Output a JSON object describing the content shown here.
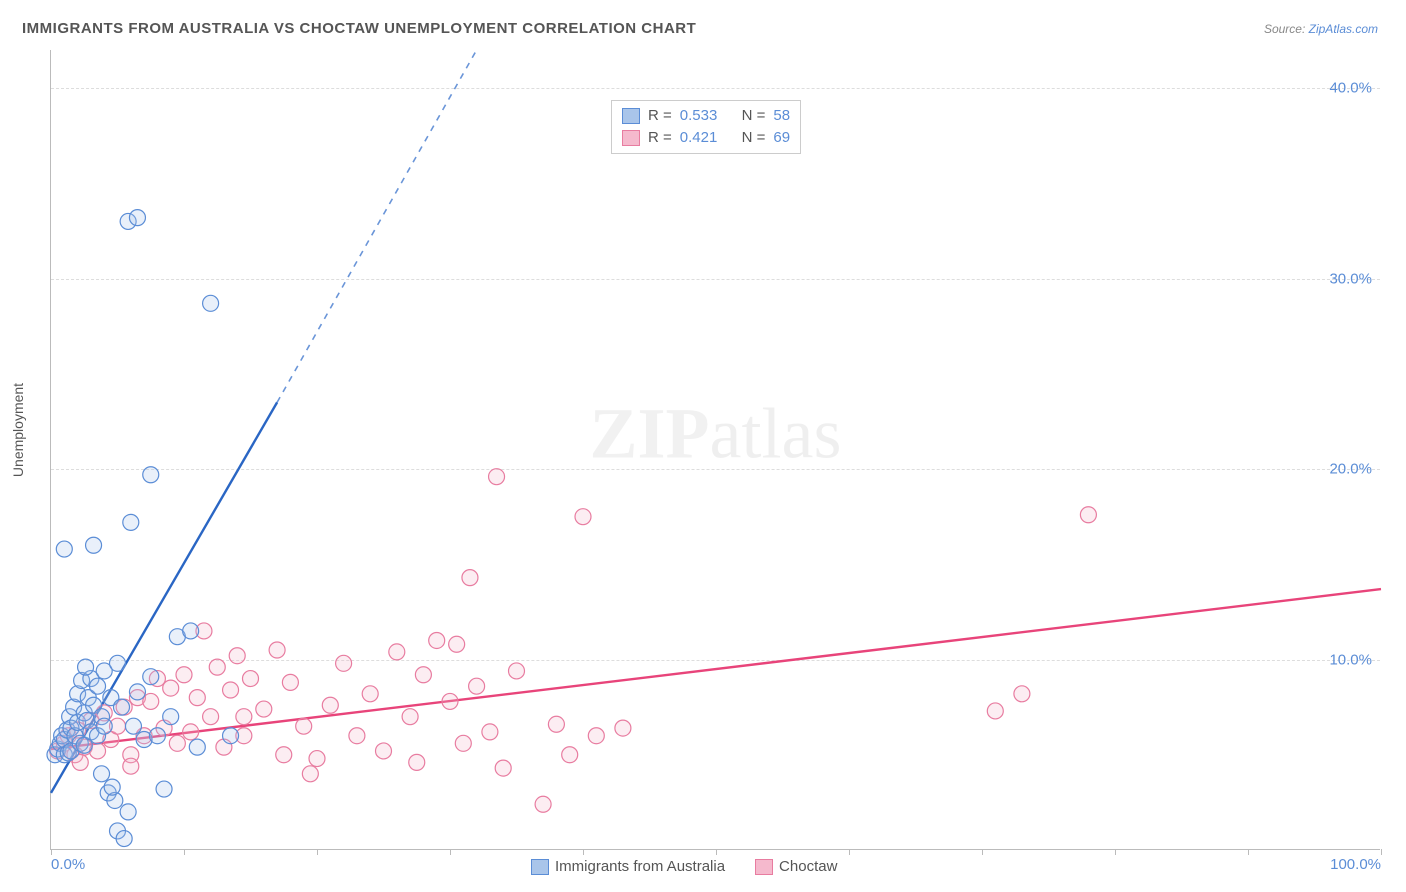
{
  "title": "IMMIGRANTS FROM AUSTRALIA VS CHOCTAW UNEMPLOYMENT CORRELATION CHART",
  "source_prefix": "Source: ",
  "source_name": "ZipAtlas.com",
  "y_axis_label": "Unemployment",
  "watermark_a": "ZIP",
  "watermark_b": "atlas",
  "chart": {
    "type": "scatter",
    "background_color": "#ffffff",
    "grid_color": "#dddddd",
    "axis_color": "#bbbbbb",
    "tick_label_color": "#5b8dd6",
    "axis_label_color": "#555555",
    "title_color": "#555555",
    "title_fontsize": 15,
    "tick_fontsize": 15,
    "axis_label_fontsize": 14,
    "xlim": [
      0,
      100
    ],
    "ylim": [
      0,
      42
    ],
    "y_ticks": [
      10.0,
      20.0,
      30.0,
      40.0
    ],
    "y_tick_labels": [
      "10.0%",
      "20.0%",
      "30.0%",
      "40.0%"
    ],
    "x_ticks": [
      0,
      10,
      20,
      30,
      40,
      50,
      60,
      70,
      80,
      90,
      100
    ],
    "x_visible_labels": {
      "0": "0.0%",
      "100": "100.0%"
    },
    "marker_radius": 8,
    "marker_stroke_width": 1.2,
    "marker_fill_opacity": 0.25,
    "trend_line_width": 2.4
  },
  "series": {
    "blue": {
      "name": "Immigrants from Australia",
      "color_stroke": "#5b8dd6",
      "color_fill": "#a9c5ea",
      "trend_line_color": "#2a66c4",
      "trend_dashed_color": "#6a95d8",
      "R_label": "R = ",
      "R_value": "0.533",
      "N_label": "N = ",
      "N_value": "58",
      "trend_solid": {
        "x1": 0,
        "y1": 3.0,
        "x2": 17,
        "y2": 23.5
      },
      "trend_dashed": {
        "x1": 17,
        "y1": 23.5,
        "x2": 32,
        "y2": 42
      },
      "points": [
        [
          0.3,
          5.0
        ],
        [
          0.5,
          5.3
        ],
        [
          0.7,
          5.6
        ],
        [
          0.8,
          6.0
        ],
        [
          1.0,
          5.0
        ],
        [
          1.0,
          5.8
        ],
        [
          1.2,
          6.3
        ],
        [
          1.3,
          5.1
        ],
        [
          1.4,
          7.0
        ],
        [
          1.5,
          6.4
        ],
        [
          1.5,
          5.2
        ],
        [
          1.7,
          7.5
        ],
        [
          1.8,
          6.0
        ],
        [
          2.0,
          8.2
        ],
        [
          2.0,
          6.7
        ],
        [
          2.2,
          5.6
        ],
        [
          2.3,
          8.9
        ],
        [
          2.5,
          7.2
        ],
        [
          2.5,
          5.5
        ],
        [
          2.7,
          6.8
        ],
        [
          2.8,
          8.0
        ],
        [
          3.0,
          9.0
        ],
        [
          3.0,
          6.2
        ],
        [
          3.2,
          7.6
        ],
        [
          3.5,
          8.6
        ],
        [
          3.5,
          6.0
        ],
        [
          3.8,
          7.0
        ],
        [
          4.0,
          9.4
        ],
        [
          4.0,
          6.5
        ],
        [
          4.3,
          3.0
        ],
        [
          4.5,
          8.0
        ],
        [
          4.8,
          2.6
        ],
        [
          5.0,
          9.8
        ],
        [
          5.0,
          1.0
        ],
        [
          5.3,
          7.5
        ],
        [
          5.5,
          0.6
        ],
        [
          5.8,
          2.0
        ],
        [
          6.2,
          6.5
        ],
        [
          6.5,
          8.3
        ],
        [
          7.0,
          5.8
        ],
        [
          7.5,
          9.1
        ],
        [
          8.0,
          6.0
        ],
        [
          8.5,
          3.2
        ],
        [
          9.0,
          7.0
        ],
        [
          9.5,
          11.2
        ],
        [
          3.2,
          16.0
        ],
        [
          6.0,
          17.2
        ],
        [
          7.5,
          19.7
        ],
        [
          5.8,
          33.0
        ],
        [
          6.5,
          33.2
        ],
        [
          12.0,
          28.7
        ],
        [
          10.5,
          11.5
        ],
        [
          11.0,
          5.4
        ],
        [
          13.5,
          6.0
        ],
        [
          1.0,
          15.8
        ],
        [
          2.6,
          9.6
        ],
        [
          3.8,
          4.0
        ],
        [
          4.6,
          3.3
        ]
      ]
    },
    "pink": {
      "name": "Choctaw",
      "color_stroke": "#e87ca0",
      "color_fill": "#f5b9cd",
      "trend_line_color": "#e8447a",
      "R_label": "R = ",
      "R_value": "0.421",
      "N_label": "N = ",
      "N_value": "69",
      "trend_solid": {
        "x1": 0,
        "y1": 5.3,
        "x2": 100,
        "y2": 13.7
      },
      "points": [
        [
          0.5,
          5.2
        ],
        [
          1.0,
          5.6
        ],
        [
          1.3,
          6.0
        ],
        [
          1.8,
          5.0
        ],
        [
          2.0,
          6.3
        ],
        [
          2.5,
          5.4
        ],
        [
          3.0,
          6.8
        ],
        [
          3.5,
          5.2
        ],
        [
          4.0,
          7.2
        ],
        [
          4.5,
          5.8
        ],
        [
          5.0,
          6.5
        ],
        [
          5.5,
          7.5
        ],
        [
          6.0,
          5.0
        ],
        [
          6.5,
          8.0
        ],
        [
          7.0,
          6.0
        ],
        [
          7.5,
          7.8
        ],
        [
          8.0,
          9.0
        ],
        [
          8.5,
          6.4
        ],
        [
          9.0,
          8.5
        ],
        [
          9.5,
          5.6
        ],
        [
          10.0,
          9.2
        ],
        [
          10.5,
          6.2
        ],
        [
          11.0,
          8.0
        ],
        [
          11.5,
          11.5
        ],
        [
          12.0,
          7.0
        ],
        [
          12.5,
          9.6
        ],
        [
          13.0,
          5.4
        ],
        [
          13.5,
          8.4
        ],
        [
          14.0,
          10.2
        ],
        [
          14.5,
          6.0
        ],
        [
          15.0,
          9.0
        ],
        [
          16.0,
          7.4
        ],
        [
          17.0,
          10.5
        ],
        [
          17.5,
          5.0
        ],
        [
          18.0,
          8.8
        ],
        [
          19.0,
          6.5
        ],
        [
          20.0,
          4.8
        ],
        [
          21.0,
          7.6
        ],
        [
          22.0,
          9.8
        ],
        [
          23.0,
          6.0
        ],
        [
          24.0,
          8.2
        ],
        [
          25.0,
          5.2
        ],
        [
          26.0,
          10.4
        ],
        [
          27.0,
          7.0
        ],
        [
          27.5,
          4.6
        ],
        [
          28.0,
          9.2
        ],
        [
          29.0,
          11.0
        ],
        [
          30.0,
          7.8
        ],
        [
          30.5,
          10.8
        ],
        [
          31.0,
          5.6
        ],
        [
          31.5,
          14.3
        ],
        [
          32.0,
          8.6
        ],
        [
          33.0,
          6.2
        ],
        [
          33.5,
          19.6
        ],
        [
          34.0,
          4.3
        ],
        [
          35.0,
          9.4
        ],
        [
          37.0,
          2.4
        ],
        [
          38.0,
          6.6
        ],
        [
          39.0,
          5.0
        ],
        [
          40.0,
          17.5
        ],
        [
          41.0,
          6.0
        ],
        [
          43.0,
          6.4
        ],
        [
          71.0,
          7.3
        ],
        [
          73.0,
          8.2
        ],
        [
          78.0,
          17.6
        ],
        [
          14.5,
          7.0
        ],
        [
          19.5,
          4.0
        ],
        [
          6.0,
          4.4
        ],
        [
          2.2,
          4.6
        ]
      ]
    }
  },
  "legend_labels": {
    "blue": "Immigrants from Australia",
    "pink": "Choctaw"
  }
}
